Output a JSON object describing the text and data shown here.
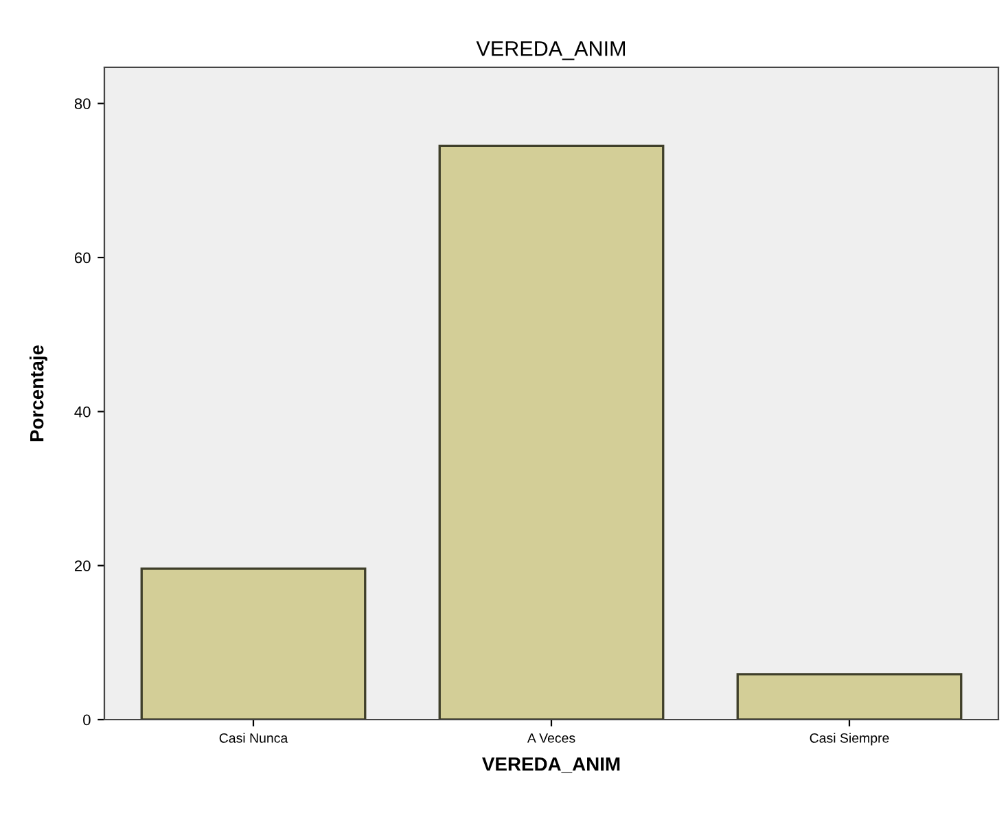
{
  "chart_data": {
    "type": "bar",
    "title": "VEREDA_ANIM",
    "xlabel": "VEREDA_ANIM",
    "ylabel": "Porcentaje",
    "categories": [
      "Casi Nunca",
      "A Veces",
      "Casi Siempre"
    ],
    "values": [
      19.6,
      74.5,
      5.9
    ],
    "color": "#d3ce97",
    "ylim": [
      0,
      84.7
    ],
    "yticks": [
      0,
      20,
      40,
      60,
      80
    ],
    "grid": false
  }
}
